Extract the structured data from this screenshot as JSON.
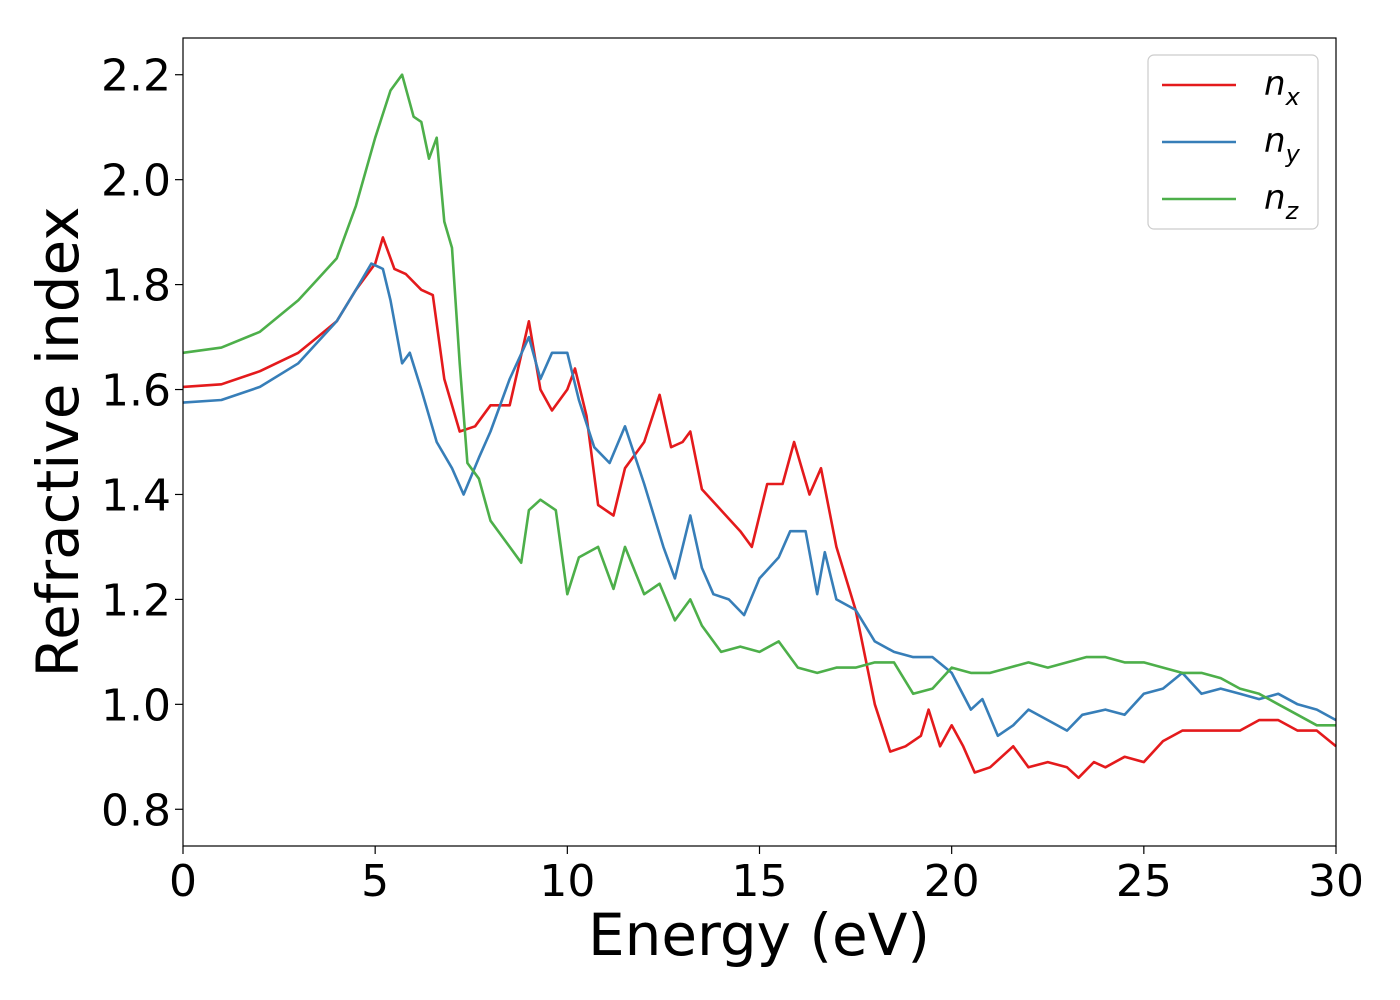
{
  "chart_data": {
    "type": "line",
    "title": "",
    "xlabel": "Energy (eV)",
    "ylabel": "Refractive index",
    "xlim": [
      0,
      30
    ],
    "ylim": [
      0.73,
      2.27
    ],
    "xticks": [
      0,
      5,
      10,
      15,
      20,
      25,
      30
    ],
    "yticks": [
      0.8,
      1.0,
      1.2,
      1.4,
      1.6,
      1.8,
      2.0,
      2.2
    ],
    "xtick_labels": [
      "0",
      "5",
      "10",
      "15",
      "20",
      "25",
      "30"
    ],
    "ytick_labels": [
      "0.8",
      "1.0",
      "1.2",
      "1.4",
      "1.6",
      "1.8",
      "2.0",
      "2.2"
    ],
    "grid": false,
    "legend": {
      "position": "top-right"
    },
    "series": [
      {
        "name": "n_x",
        "label_base": "n",
        "label_sub": "x",
        "color": "#e41a1c",
        "points": [
          [
            0,
            1.605
          ],
          [
            1,
            1.61
          ],
          [
            2,
            1.635
          ],
          [
            3,
            1.67
          ],
          [
            3.5,
            1.7
          ],
          [
            4,
            1.73
          ],
          [
            4.5,
            1.79
          ],
          [
            5,
            1.84
          ],
          [
            5.2,
            1.89
          ],
          [
            5.5,
            1.83
          ],
          [
            5.8,
            1.82
          ],
          [
            6.2,
            1.79
          ],
          [
            6.5,
            1.78
          ],
          [
            6.8,
            1.62
          ],
          [
            7.2,
            1.52
          ],
          [
            7.6,
            1.53
          ],
          [
            8,
            1.57
          ],
          [
            8.5,
            1.57
          ],
          [
            9,
            1.73
          ],
          [
            9.3,
            1.6
          ],
          [
            9.6,
            1.56
          ],
          [
            10,
            1.6
          ],
          [
            10.2,
            1.64
          ],
          [
            10.5,
            1.55
          ],
          [
            10.8,
            1.38
          ],
          [
            11.2,
            1.36
          ],
          [
            11.5,
            1.45
          ],
          [
            12,
            1.5
          ],
          [
            12.4,
            1.59
          ],
          [
            12.7,
            1.49
          ],
          [
            13,
            1.5
          ],
          [
            13.2,
            1.52
          ],
          [
            13.5,
            1.41
          ],
          [
            14,
            1.37
          ],
          [
            14.5,
            1.33
          ],
          [
            14.8,
            1.3
          ],
          [
            15.2,
            1.42
          ],
          [
            15.6,
            1.42
          ],
          [
            15.9,
            1.5
          ],
          [
            16.3,
            1.4
          ],
          [
            16.6,
            1.45
          ],
          [
            17,
            1.3
          ],
          [
            17.5,
            1.18
          ],
          [
            18,
            1.0
          ],
          [
            18.4,
            0.91
          ],
          [
            18.8,
            0.92
          ],
          [
            19.2,
            0.94
          ],
          [
            19.4,
            0.99
          ],
          [
            19.7,
            0.92
          ],
          [
            20,
            0.96
          ],
          [
            20.3,
            0.92
          ],
          [
            20.6,
            0.87
          ],
          [
            21,
            0.88
          ],
          [
            21.6,
            0.92
          ],
          [
            22,
            0.88
          ],
          [
            22.5,
            0.89
          ],
          [
            23,
            0.88
          ],
          [
            23.3,
            0.86
          ],
          [
            23.7,
            0.89
          ],
          [
            24,
            0.88
          ],
          [
            24.5,
            0.9
          ],
          [
            25,
            0.89
          ],
          [
            25.5,
            0.93
          ],
          [
            26,
            0.95
          ],
          [
            26.5,
            0.95
          ],
          [
            27,
            0.95
          ],
          [
            27.5,
            0.95
          ],
          [
            28,
            0.97
          ],
          [
            28.5,
            0.97
          ],
          [
            29,
            0.95
          ],
          [
            29.5,
            0.95
          ],
          [
            30,
            0.92
          ]
        ]
      },
      {
        "name": "n_y",
        "label_base": "n",
        "label_sub": "y",
        "color": "#377eb8",
        "points": [
          [
            0,
            1.575
          ],
          [
            1,
            1.58
          ],
          [
            2,
            1.605
          ],
          [
            3,
            1.65
          ],
          [
            3.5,
            1.69
          ],
          [
            4,
            1.73
          ],
          [
            4.5,
            1.79
          ],
          [
            4.9,
            1.84
          ],
          [
            5.2,
            1.83
          ],
          [
            5.4,
            1.77
          ],
          [
            5.7,
            1.65
          ],
          [
            5.9,
            1.67
          ],
          [
            6.2,
            1.6
          ],
          [
            6.6,
            1.5
          ],
          [
            7,
            1.45
          ],
          [
            7.3,
            1.4
          ],
          [
            7.7,
            1.47
          ],
          [
            8,
            1.52
          ],
          [
            8.5,
            1.62
          ],
          [
            9,
            1.7
          ],
          [
            9.3,
            1.62
          ],
          [
            9.6,
            1.67
          ],
          [
            10,
            1.67
          ],
          [
            10.3,
            1.58
          ],
          [
            10.7,
            1.49
          ],
          [
            11.1,
            1.46
          ],
          [
            11.5,
            1.53
          ],
          [
            12,
            1.42
          ],
          [
            12.5,
            1.3
          ],
          [
            12.8,
            1.24
          ],
          [
            13.2,
            1.36
          ],
          [
            13.5,
            1.26
          ],
          [
            13.8,
            1.21
          ],
          [
            14.2,
            1.2
          ],
          [
            14.6,
            1.17
          ],
          [
            15,
            1.24
          ],
          [
            15.5,
            1.28
          ],
          [
            15.8,
            1.33
          ],
          [
            16.2,
            1.33
          ],
          [
            16.5,
            1.21
          ],
          [
            16.7,
            1.29
          ],
          [
            17,
            1.2
          ],
          [
            17.5,
            1.18
          ],
          [
            18,
            1.12
          ],
          [
            18.5,
            1.1
          ],
          [
            19,
            1.09
          ],
          [
            19.5,
            1.09
          ],
          [
            20,
            1.06
          ],
          [
            20.5,
            0.99
          ],
          [
            20.8,
            1.01
          ],
          [
            21.2,
            0.94
          ],
          [
            21.6,
            0.96
          ],
          [
            22,
            0.99
          ],
          [
            22.5,
            0.97
          ],
          [
            23,
            0.95
          ],
          [
            23.4,
            0.98
          ],
          [
            24,
            0.99
          ],
          [
            24.5,
            0.98
          ],
          [
            25,
            1.02
          ],
          [
            25.5,
            1.03
          ],
          [
            26,
            1.06
          ],
          [
            26.5,
            1.02
          ],
          [
            27,
            1.03
          ],
          [
            27.5,
            1.02
          ],
          [
            28,
            1.01
          ],
          [
            28.5,
            1.02
          ],
          [
            29,
            1.0
          ],
          [
            29.5,
            0.99
          ],
          [
            30,
            0.97
          ]
        ]
      },
      {
        "name": "n_z",
        "label_base": "n",
        "label_sub": "z",
        "color": "#4daf4a",
        "points": [
          [
            0,
            1.67
          ],
          [
            1,
            1.68
          ],
          [
            2,
            1.71
          ],
          [
            3,
            1.77
          ],
          [
            3.5,
            1.81
          ],
          [
            4,
            1.85
          ],
          [
            4.5,
            1.95
          ],
          [
            5,
            2.08
          ],
          [
            5.4,
            2.17
          ],
          [
            5.7,
            2.2
          ],
          [
            6,
            2.12
          ],
          [
            6.2,
            2.11
          ],
          [
            6.4,
            2.04
          ],
          [
            6.6,
            2.08
          ],
          [
            6.8,
            1.92
          ],
          [
            7,
            1.87
          ],
          [
            7.2,
            1.65
          ],
          [
            7.4,
            1.46
          ],
          [
            7.7,
            1.43
          ],
          [
            8,
            1.35
          ],
          [
            8.5,
            1.3
          ],
          [
            8.8,
            1.27
          ],
          [
            9,
            1.37
          ],
          [
            9.3,
            1.39
          ],
          [
            9.7,
            1.37
          ],
          [
            10,
            1.21
          ],
          [
            10.3,
            1.28
          ],
          [
            10.8,
            1.3
          ],
          [
            11.2,
            1.22
          ],
          [
            11.5,
            1.3
          ],
          [
            12,
            1.21
          ],
          [
            12.4,
            1.23
          ],
          [
            12.8,
            1.16
          ],
          [
            13.2,
            1.2
          ],
          [
            13.5,
            1.15
          ],
          [
            14,
            1.1
          ],
          [
            14.5,
            1.11
          ],
          [
            15,
            1.1
          ],
          [
            15.5,
            1.12
          ],
          [
            16,
            1.07
          ],
          [
            16.5,
            1.06
          ],
          [
            17,
            1.07
          ],
          [
            17.5,
            1.07
          ],
          [
            18,
            1.08
          ],
          [
            18.5,
            1.08
          ],
          [
            19,
            1.02
          ],
          [
            19.5,
            1.03
          ],
          [
            20,
            1.07
          ],
          [
            20.5,
            1.06
          ],
          [
            21,
            1.06
          ],
          [
            21.5,
            1.07
          ],
          [
            22,
            1.08
          ],
          [
            22.5,
            1.07
          ],
          [
            23,
            1.08
          ],
          [
            23.5,
            1.09
          ],
          [
            24,
            1.09
          ],
          [
            24.5,
            1.08
          ],
          [
            25,
            1.08
          ],
          [
            25.5,
            1.07
          ],
          [
            26,
            1.06
          ],
          [
            26.5,
            1.06
          ],
          [
            27,
            1.05
          ],
          [
            27.5,
            1.03
          ],
          [
            28,
            1.02
          ],
          [
            28.5,
            1.0
          ],
          [
            29,
            0.98
          ],
          [
            29.5,
            0.96
          ],
          [
            30,
            0.96
          ]
        ]
      }
    ]
  }
}
